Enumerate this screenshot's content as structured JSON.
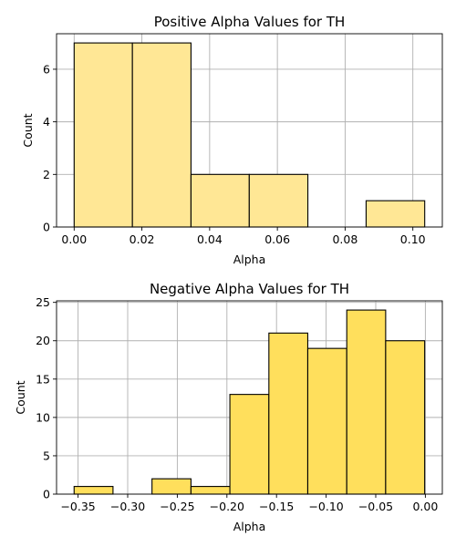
{
  "chart_data": [
    {
      "type": "bar",
      "title": "Positive Alpha Values for TH",
      "xlabel": "Alpha",
      "ylabel": "Count",
      "bar_color": "#ffe795",
      "bins": [
        {
          "x0": 0.0,
          "x1": 0.0172,
          "count": 7
        },
        {
          "x0": 0.0172,
          "x1": 0.0345,
          "count": 7
        },
        {
          "x0": 0.0345,
          "x1": 0.0517,
          "count": 2
        },
        {
          "x0": 0.0517,
          "x1": 0.069,
          "count": 2
        },
        {
          "x0": 0.069,
          "x1": 0.0862,
          "count": 0
        },
        {
          "x0": 0.0862,
          "x1": 0.1035,
          "count": 1
        }
      ],
      "xlim": [
        -0.0052,
        0.1087
      ],
      "ylim": [
        0,
        7.35
      ],
      "xticks": [
        0.0,
        0.02,
        0.04,
        0.06,
        0.08,
        0.1
      ],
      "xtick_labels": [
        "0.00",
        "0.02",
        "0.04",
        "0.06",
        "0.08",
        "0.10"
      ],
      "yticks": [
        0,
        2,
        4,
        6
      ],
      "ytick_labels": [
        "0",
        "2",
        "4",
        "6"
      ],
      "grid": true
    },
    {
      "type": "bar",
      "title": "Negative Alpha Values for TH",
      "xlabel": "Alpha",
      "ylabel": "Count",
      "bar_color": "#ffdf5c",
      "bins": [
        {
          "x0": -0.354,
          "x1": -0.3148,
          "count": 1
        },
        {
          "x0": -0.3148,
          "x1": -0.2755,
          "count": 0
        },
        {
          "x0": -0.2755,
          "x1": -0.2362,
          "count": 2
        },
        {
          "x0": -0.2362,
          "x1": -0.197,
          "count": 1
        },
        {
          "x0": -0.197,
          "x1": -0.1577,
          "count": 13
        },
        {
          "x0": -0.1577,
          "x1": -0.1185,
          "count": 21
        },
        {
          "x0": -0.1185,
          "x1": -0.0792,
          "count": 19
        },
        {
          "x0": -0.0792,
          "x1": -0.04,
          "count": 24
        },
        {
          "x0": -0.04,
          "x1": -0.0007,
          "count": 20
        }
      ],
      "xlim": [
        -0.3717,
        0.0171
      ],
      "ylim": [
        0,
        25.2
      ],
      "xticks": [
        -0.35,
        -0.3,
        -0.25,
        -0.2,
        -0.15,
        -0.1,
        -0.05,
        0.0
      ],
      "xtick_labels": [
        "−0.35",
        "−0.30",
        "−0.25",
        "−0.20",
        "−0.15",
        "−0.10",
        "−0.05",
        "0.00"
      ],
      "yticks": [
        0,
        5,
        10,
        15,
        20,
        25
      ],
      "ytick_labels": [
        "0",
        "5",
        "10",
        "15",
        "20",
        "25"
      ],
      "grid": true
    }
  ]
}
